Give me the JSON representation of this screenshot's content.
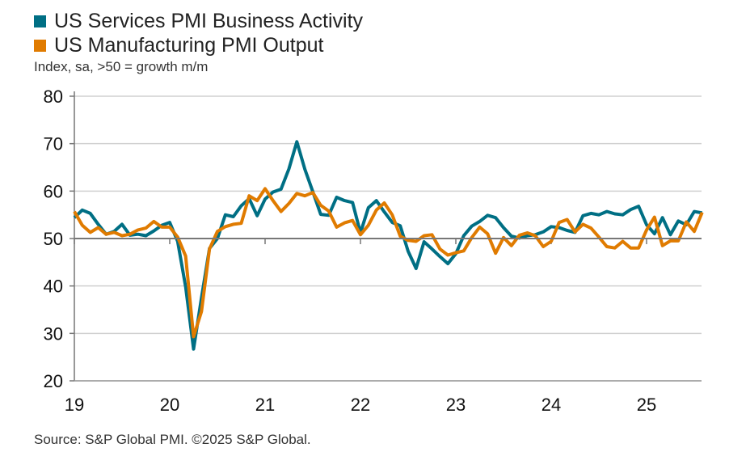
{
  "chart_data": {
    "type": "line",
    "subtitle": "Index, sa, >50 = growth m/m",
    "source": "Source: S&P Global PMI. ©2025 S&P Global.",
    "x_start": "2019-01",
    "x_frequency": "monthly",
    "xticks": [
      "19",
      "20",
      "21",
      "22",
      "23",
      "24",
      "25"
    ],
    "yticks": [
      20,
      30,
      40,
      50,
      60,
      70,
      80
    ],
    "ylim": [
      20,
      80
    ],
    "reference_line": 50,
    "grid": true,
    "legend": "top-left",
    "series": [
      {
        "name": "US Services PMI Business Activity",
        "color": "#006f84",
        "values": [
          54.4,
          56.0,
          55.3,
          53.0,
          50.9,
          51.5,
          53.0,
          50.7,
          50.9,
          50.6,
          51.6,
          52.8,
          53.4,
          49.4,
          39.8,
          26.7,
          37.5,
          47.9,
          50.0,
          55.0,
          54.6,
          56.9,
          58.4,
          54.8,
          58.3,
          59.8,
          60.4,
          64.7,
          70.4,
          64.6,
          59.9,
          55.1,
          54.9,
          58.7,
          58.0,
          57.6,
          51.2,
          56.5,
          58.0,
          55.6,
          53.4,
          52.7,
          47.3,
          43.7,
          49.3,
          47.8,
          46.2,
          44.7,
          46.8,
          50.6,
          52.6,
          53.6,
          54.9,
          54.4,
          52.3,
          50.5,
          50.1,
          50.6,
          50.8,
          51.4,
          52.5,
          52.3,
          51.7,
          51.3,
          54.8,
          55.3,
          55.0,
          55.7,
          55.2,
          55.0,
          56.1,
          56.8,
          52.9,
          51.0,
          54.4,
          50.8,
          53.7,
          52.9,
          55.7,
          55.4
        ]
      },
      {
        "name": "US Manufacturing PMI Output",
        "color": "#e07b00",
        "values": [
          55.7,
          52.8,
          51.3,
          52.3,
          50.9,
          51.3,
          50.6,
          50.9,
          51.8,
          52.2,
          53.6,
          52.4,
          52.4,
          50.3,
          46.3,
          29.3,
          34.6,
          47.8,
          51.5,
          52.5,
          53.0,
          53.2,
          59.0,
          58.0,
          60.5,
          58.0,
          55.7,
          57.4,
          59.5,
          59.0,
          59.7,
          57.0,
          55.8,
          52.4,
          53.3,
          53.8,
          50.8,
          52.8,
          56.0,
          57.5,
          55.0,
          50.5,
          49.6,
          49.4,
          50.6,
          50.8,
          47.8,
          46.5,
          47.0,
          47.4,
          50.2,
          52.4,
          51.0,
          46.9,
          50.2,
          48.5,
          50.7,
          51.2,
          50.6,
          48.3,
          49.4,
          53.4,
          54.0,
          51.4,
          53.0,
          52.2,
          50.3,
          48.3,
          48.0,
          49.4,
          48.0,
          48.0,
          51.8,
          54.5,
          48.5,
          49.5,
          49.5,
          53.5,
          51.5,
          55.5
        ]
      }
    ]
  }
}
